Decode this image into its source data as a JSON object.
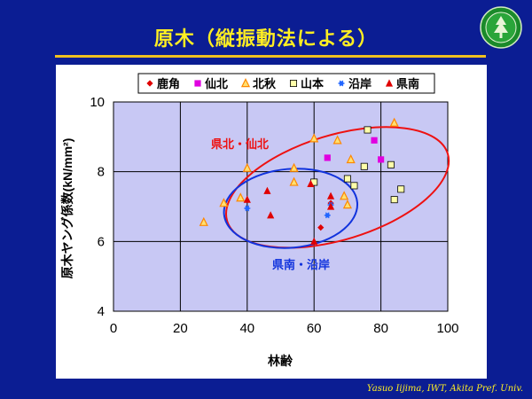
{
  "slide": {
    "title": "原木（縦振動法による）",
    "footer": "Yasuo Iijima, IWT, Akita Pref.  Univ."
  },
  "chart_data": {
    "type": "scatter",
    "xlabel": "林齢",
    "ylabel": "原木ヤング係数(kN/mm²)",
    "xlim": [
      0,
      100
    ],
    "ylim": [
      4,
      10
    ],
    "xticks": [
      "0",
      "20",
      "40",
      "60",
      "80",
      "100"
    ],
    "yticks": [
      "4",
      "6",
      "8",
      "10"
    ],
    "grid": true,
    "legend_position": "top",
    "series": [
      {
        "name": "鹿角",
        "marker": "diamond",
        "color": "#e00000",
        "points": [
          [
            62,
            6.4
          ],
          [
            65,
            7.1
          ]
        ]
      },
      {
        "name": "仙北",
        "marker": "square",
        "color": "#e000e0",
        "points": [
          [
            64,
            8.4
          ],
          [
            78,
            8.9
          ],
          [
            80,
            8.35
          ]
        ]
      },
      {
        "name": "北秋",
        "marker": "triangle-open",
        "color": "#ff8800",
        "points": [
          [
            27,
            6.55
          ],
          [
            33,
            7.1
          ],
          [
            38,
            7.25
          ],
          [
            40,
            8.1
          ],
          [
            54,
            7.7
          ],
          [
            54,
            8.1
          ],
          [
            60,
            8.95
          ],
          [
            67,
            8.9
          ],
          [
            69,
            7.3
          ],
          [
            70,
            7.05
          ],
          [
            71,
            8.35
          ],
          [
            84,
            9.4
          ]
        ]
      },
      {
        "name": "山本",
        "marker": "square-open",
        "color": "#cccc00",
        "points": [
          [
            60,
            7.7
          ],
          [
            70,
            7.8
          ],
          [
            72,
            7.6
          ],
          [
            75,
            8.15
          ],
          [
            76,
            9.2
          ],
          [
            83,
            8.2
          ],
          [
            84,
            7.2
          ],
          [
            86,
            7.5
          ]
        ]
      },
      {
        "name": "沿岸",
        "marker": "asterisk",
        "color": "#2266ff",
        "points": [
          [
            40,
            6.95
          ],
          [
            64,
            6.75
          ],
          [
            65,
            7.05
          ]
        ]
      },
      {
        "name": "県南",
        "marker": "triangle",
        "color": "#e00000",
        "points": [
          [
            40,
            7.2
          ],
          [
            46,
            7.45
          ],
          [
            47,
            6.75
          ],
          [
            59,
            7.65
          ],
          [
            60,
            6.0
          ],
          [
            65,
            7.3
          ],
          [
            65,
            7.0
          ]
        ]
      }
    ],
    "ellipses": [
      {
        "label": "県北・仙北",
        "color": "#ee1111"
      },
      {
        "label": "県南・沿岸",
        "color": "#1133dd"
      }
    ]
  }
}
